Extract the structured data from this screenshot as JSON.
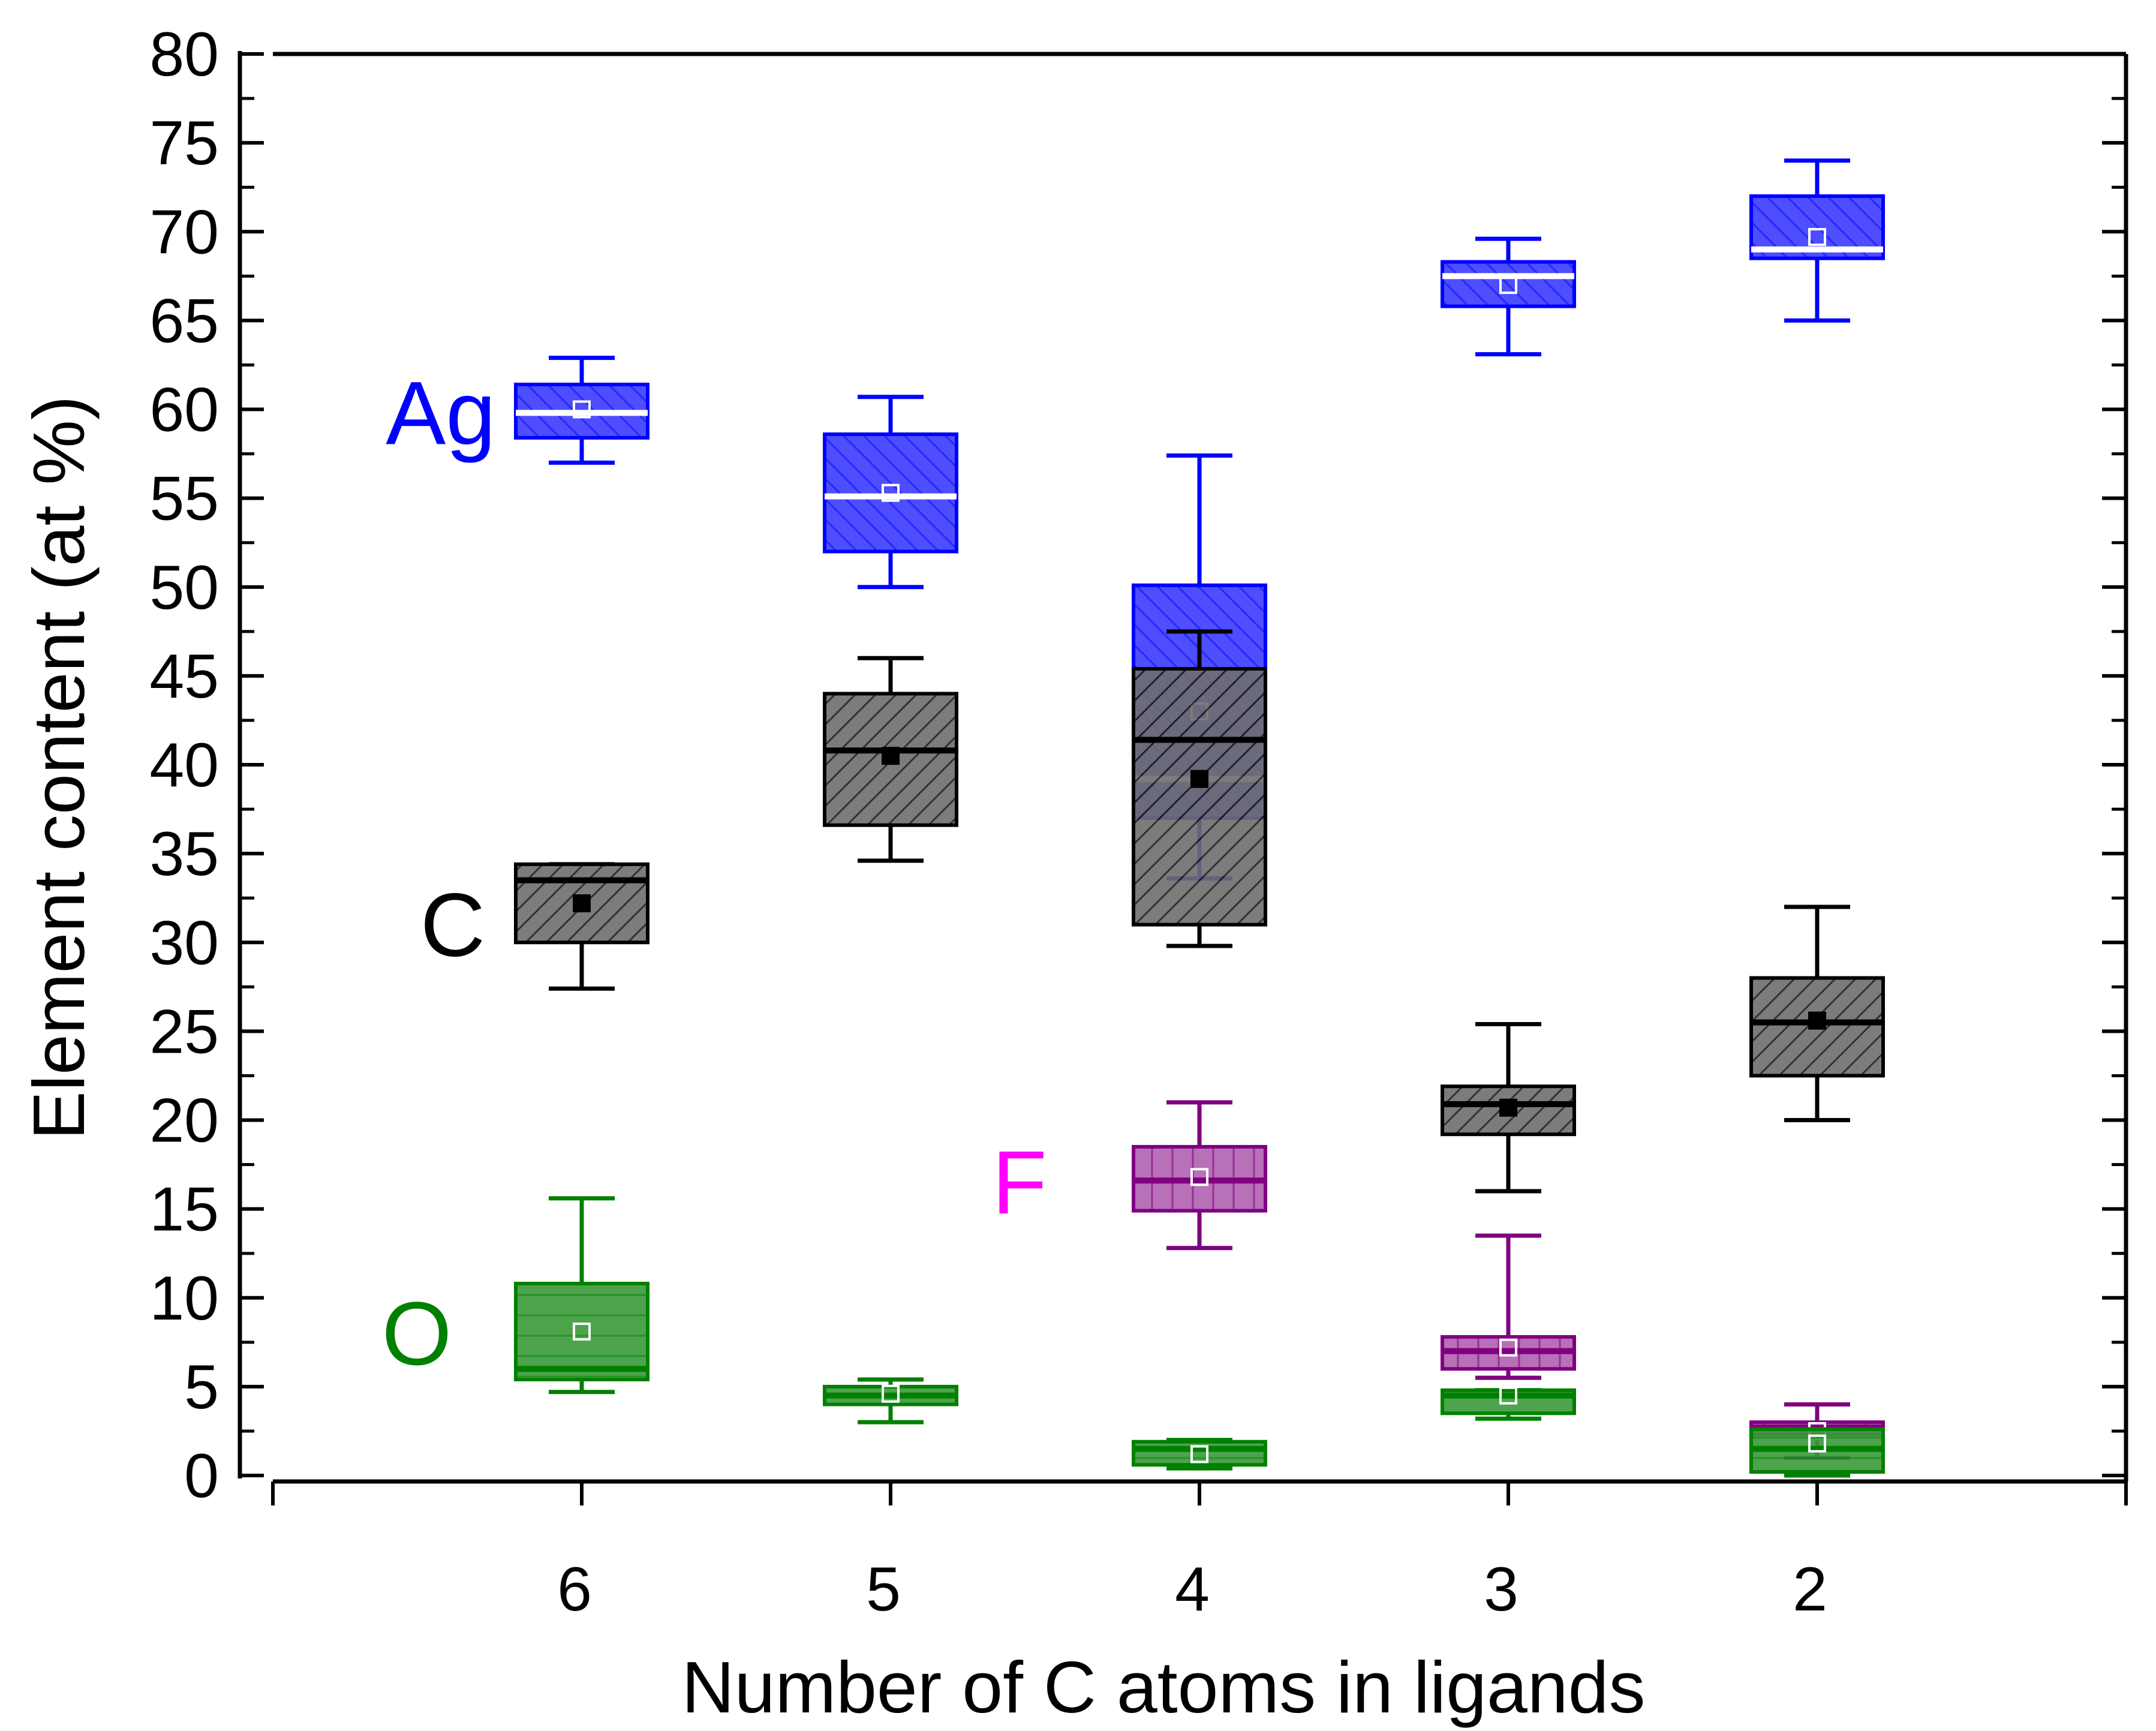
{
  "chart_data": {
    "type": "box",
    "title": "",
    "xlabel": "Number of C atoms in ligands",
    "ylabel": "Element content (at %)",
    "categories": [
      "6",
      "5",
      "4",
      "3",
      "2"
    ],
    "ylim": [
      0,
      80
    ],
    "yticks": [
      "0",
      "5",
      "10",
      "15",
      "20",
      "25",
      "30",
      "35",
      "40",
      "45",
      "50",
      "55",
      "60",
      "65",
      "70",
      "75",
      "80"
    ],
    "grid": false,
    "legend": "none",
    "series": [
      {
        "name": "Ag",
        "color": "#0000ff",
        "fill": "#3b3bff",
        "median_color": "#ffffff",
        "mean_marker": "#ffffff",
        "hatch": "diagonal-down",
        "boxes": [
          {
            "category": "6",
            "min": 57.0,
            "q1": 58.4,
            "median": 59.8,
            "q3": 61.4,
            "max": 62.9,
            "mean": 60.0
          },
          {
            "category": "5",
            "min": 50.0,
            "q1": 52.0,
            "median": 55.1,
            "q3": 58.6,
            "max": 60.7,
            "mean": 55.3
          },
          {
            "category": "4",
            "min": 33.6,
            "q1": 37.0,
            "median": 39.2,
            "q3": 50.1,
            "max": 57.4,
            "mean": 43.0
          },
          {
            "category": "3",
            "min": 63.1,
            "q1": 65.8,
            "median": 67.5,
            "q3": 68.3,
            "max": 69.6,
            "mean": 67.0
          },
          {
            "category": "2",
            "min": 65.0,
            "q1": 68.5,
            "median": 69.0,
            "q3": 72.0,
            "max": 74.0,
            "mean": 69.7
          }
        ]
      },
      {
        "name": "C",
        "color": "#000000",
        "fill": "#6e6e6e",
        "median_color": "#000000",
        "mean_marker": "#000000",
        "hatch": "diagonal-up",
        "boxes": [
          {
            "category": "6",
            "min": 27.4,
            "q1": 30.0,
            "median": 33.5,
            "q3": 34.4,
            "max": 34.4,
            "mean": 32.2
          },
          {
            "category": "5",
            "min": 34.6,
            "q1": 36.6,
            "median": 40.8,
            "q3": 44.0,
            "max": 46.0,
            "mean": 40.5
          },
          {
            "category": "4",
            "min": 29.8,
            "q1": 31.0,
            "median": 41.4,
            "q3": 45.4,
            "max": 47.5,
            "mean": 39.2
          },
          {
            "category": "3",
            "min": 16.0,
            "q1": 19.2,
            "median": 20.9,
            "q3": 21.9,
            "max": 25.4,
            "mean": 20.7
          },
          {
            "category": "2",
            "min": 20.0,
            "q1": 22.5,
            "median": 25.5,
            "q3": 28.0,
            "max": 32.0,
            "mean": 25.6
          }
        ]
      },
      {
        "name": "F",
        "color": "#800080",
        "fill": "#b060b0",
        "median_color": "#800080",
        "mean_marker": "#ffffff",
        "hatch": "vertical",
        "boxes": [
          {
            "category": "4",
            "min": 12.8,
            "q1": 14.9,
            "median": 16.6,
            "q3": 18.5,
            "max": 21.0,
            "mean": 16.8
          },
          {
            "category": "3",
            "min": 5.5,
            "q1": 6.0,
            "median": 7.0,
            "q3": 7.8,
            "max": 13.5,
            "mean": 7.2
          },
          {
            "category": "2",
            "min": 1.0,
            "q1": 2.3,
            "median": 2.7,
            "q3": 3.0,
            "max": 4.0,
            "mean": 2.5
          }
        ]
      },
      {
        "name": "O",
        "color": "#008000",
        "fill": "#3a9a3a",
        "median_color": "#008000",
        "mean_marker": "#ffffff",
        "hatch": "horizontal",
        "boxes": [
          {
            "category": "6",
            "min": 4.7,
            "q1": 5.4,
            "median": 6.0,
            "q3": 10.8,
            "max": 15.6,
            "mean": 8.1
          },
          {
            "category": "5",
            "min": 3.0,
            "q1": 4.0,
            "median": 4.5,
            "q3": 5.0,
            "max": 5.4,
            "mean": 4.6
          },
          {
            "category": "4",
            "min": 0.4,
            "q1": 0.6,
            "median": 1.5,
            "q3": 1.9,
            "max": 2.0,
            "mean": 1.2
          },
          {
            "category": "3",
            "min": 3.2,
            "q1": 3.5,
            "median": 4.5,
            "q3": 4.8,
            "max": 4.8,
            "mean": 4.5
          },
          {
            "category": "2",
            "min": 0.0,
            "q1": 0.2,
            "median": 1.5,
            "q3": 2.6,
            "max": 2.6,
            "mean": 1.8
          }
        ]
      }
    ],
    "annotations": [
      {
        "text": "Ag",
        "color": "#0000ff",
        "near_category": "6",
        "y": 59.8
      },
      {
        "text": "C",
        "color": "#000000",
        "near_category": "6",
        "y": 31.0
      },
      {
        "text": "F",
        "color": "#ff00ff",
        "near_category": "4",
        "y": 16.5
      },
      {
        "text": "O",
        "color": "#008000",
        "near_category": "6",
        "y": 8.0
      }
    ]
  }
}
